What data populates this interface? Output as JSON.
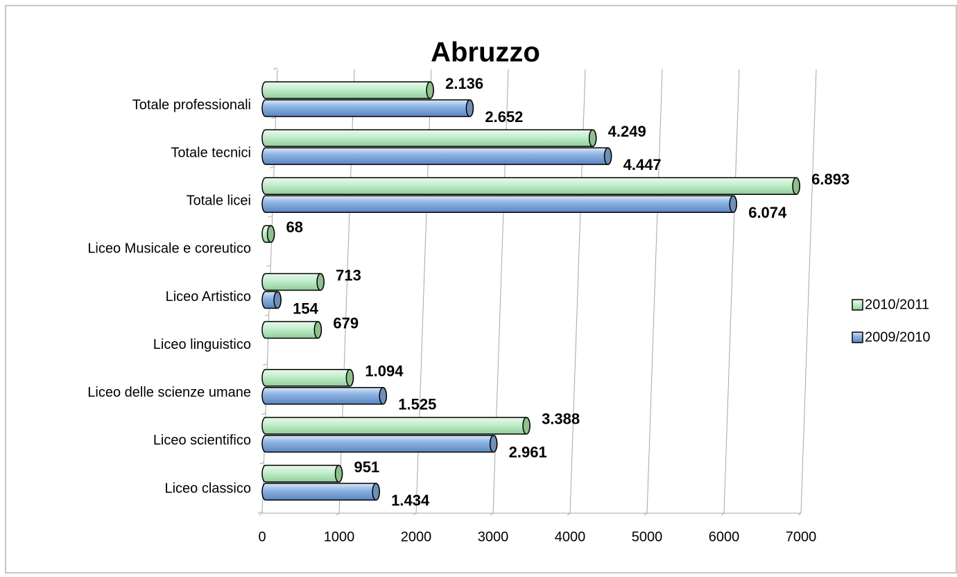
{
  "chart_data": {
    "type": "bar",
    "orientation": "horizontal",
    "title": "Abruzzo",
    "categories": [
      "Liceo classico",
      "Liceo scientifico",
      "Liceo delle scienze umane",
      "Liceo linguistico",
      "Liceo Artistico",
      "Liceo Musicale e coreutico",
      "Totale licei",
      "Totale tecnici",
      "Totale professionali"
    ],
    "series": [
      {
        "name": "2010/2011",
        "color": "#c6efce",
        "values": [
          951,
          3388,
          1094,
          679,
          713,
          68,
          6893,
          4249,
          2136
        ],
        "value_labels": [
          "951",
          "3.388",
          "1.094",
          "679",
          "713",
          "68",
          "6.893",
          "4.249",
          "2.136"
        ]
      },
      {
        "name": "2009/2010",
        "color": "#8db4e2",
        "values": [
          1434,
          2961,
          1525,
          null,
          154,
          null,
          6074,
          4447,
          2652
        ],
        "value_labels": [
          "1.434",
          "2.961",
          "1.525",
          null,
          "154",
          null,
          "6.074",
          "4.447",
          "2.652"
        ]
      }
    ],
    "xlim": [
      0,
      7000
    ],
    "xticks": [
      0,
      1000,
      2000,
      3000,
      4000,
      5000,
      6000,
      7000
    ],
    "grid": true,
    "legend": "right"
  }
}
